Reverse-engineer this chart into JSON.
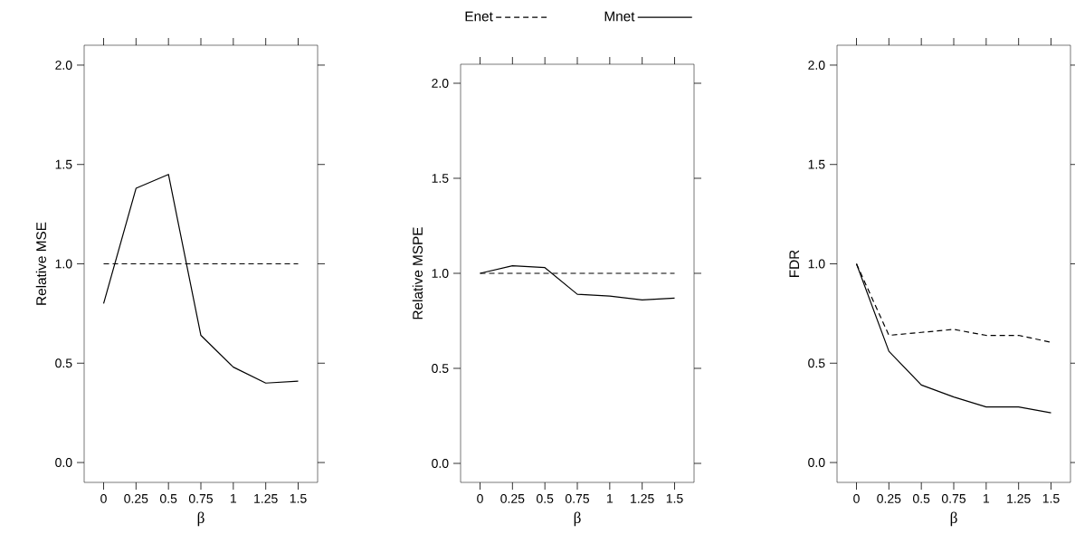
{
  "chart_data": [
    {
      "type": "line",
      "xlabel": "β",
      "ylabel": "Relative MSE",
      "x": [
        0,
        0.25,
        0.5,
        0.75,
        1,
        1.25,
        1.5
      ],
      "series": [
        {
          "color": "#000000",
          "line_style": "dashed",
          "values": [
            1,
            1,
            1,
            1,
            1,
            1,
            1
          ]
        },
        {
          "color": "#000000",
          "line_style": "solid",
          "values": [
            0.8,
            1.38,
            1.45,
            0.64,
            0.48,
            0.4,
            0.41
          ]
        }
      ],
      "xlim": [
        -0.15,
        1.65
      ],
      "xticks": [
        0,
        0.25,
        0.5,
        0.75,
        1,
        1.25,
        1.5
      ],
      "ylim": [
        -0.1,
        2.1
      ],
      "yticks": [
        {
          "value": 0,
          "label": "0.0"
        },
        {
          "value": 0.5,
          "label": "0.5"
        },
        {
          "value": 1,
          "label": "1.0"
        },
        {
          "value": 1.5,
          "label": "1.5"
        },
        {
          "value": 2,
          "label": "2.0"
        }
      ],
      "grid": false,
      "legend": false
    },
    {
      "type": "line",
      "xlabel": "β",
      "ylabel": "Relative MSPE",
      "x": [
        0,
        0.25,
        0.5,
        0.75,
        1,
        1.25,
        1.5
      ],
      "series": [
        {
          "name": "Enet",
          "color": "#000000",
          "line_style": "dashed",
          "values": [
            1,
            1,
            1,
            1,
            1,
            1,
            1
          ]
        },
        {
          "name": "Mnet",
          "color": "#000000",
          "line_style": "solid",
          "values": [
            1.0,
            1.04,
            1.03,
            0.89,
            0.88,
            0.86,
            0.87
          ]
        }
      ],
      "xlim": [
        -0.15,
        1.65
      ],
      "xticks": [
        0,
        0.25,
        0.5,
        0.75,
        1,
        1.25,
        1.5
      ],
      "ylim": [
        -0.1,
        2.1
      ],
      "yticks": [
        {
          "value": 0,
          "label": "0.0"
        },
        {
          "value": 0.5,
          "label": "0.5"
        },
        {
          "value": 1,
          "label": "1.0"
        },
        {
          "value": 1.5,
          "label": "1.5"
        },
        {
          "value": 2,
          "label": "2.0"
        }
      ],
      "grid": false,
      "legend": "top"
    },
    {
      "type": "line",
      "xlabel": "β",
      "ylabel": "FDR",
      "x": [
        0,
        0.25,
        0.5,
        0.75,
        1,
        1.25,
        1.5
      ],
      "series": [
        {
          "color": "#000000",
          "line_style": "dashed",
          "values": [
            1.0,
            0.64,
            0.655,
            0.67,
            0.64,
            0.64,
            0.605
          ]
        },
        {
          "color": "#000000",
          "line_style": "solid",
          "values": [
            1.0,
            0.56,
            0.39,
            0.33,
            0.28,
            0.28,
            0.25
          ]
        }
      ],
      "xlim": [
        -0.15,
        1.65
      ],
      "xticks": [
        0,
        0.25,
        0.5,
        0.75,
        1,
        1.25,
        1.5
      ],
      "ylim": [
        -0.1,
        2.1
      ],
      "yticks": [
        {
          "value": 0,
          "label": "0.0"
        },
        {
          "value": 0.5,
          "label": "0.5"
        },
        {
          "value": 1,
          "label": "1.0"
        },
        {
          "value": 1.5,
          "label": "1.5"
        },
        {
          "value": 2,
          "label": "2.0"
        }
      ],
      "grid": false,
      "legend": false
    }
  ]
}
